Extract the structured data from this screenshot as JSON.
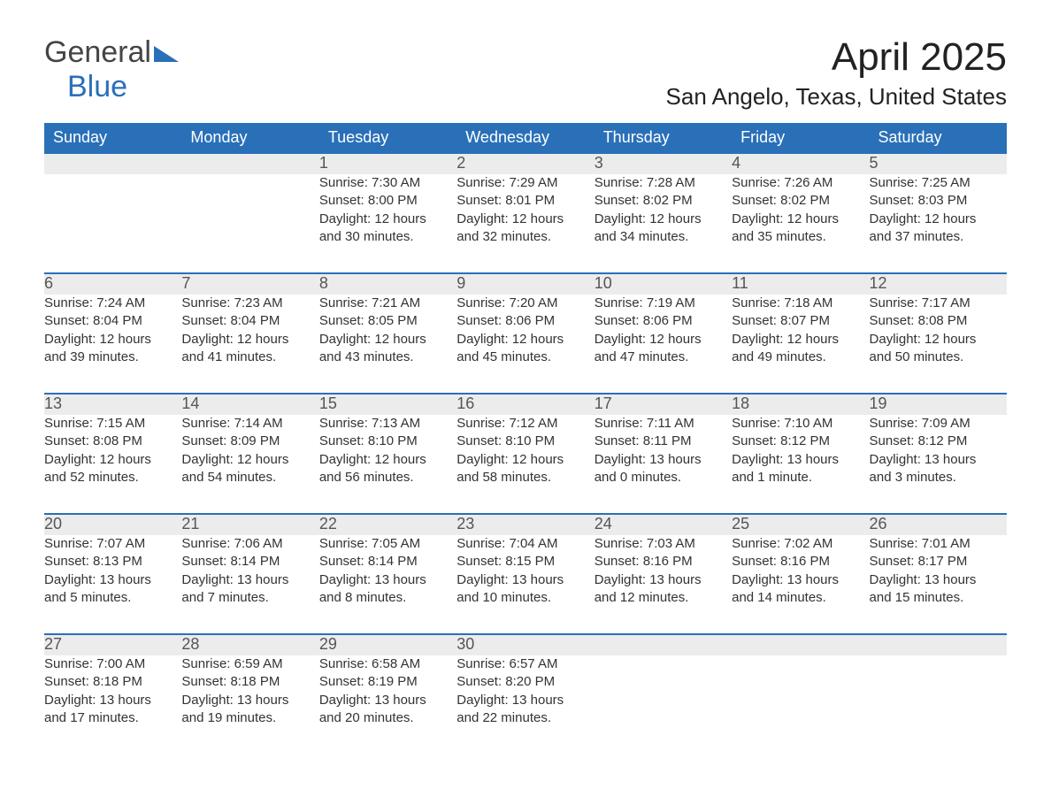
{
  "logo": {
    "text1": "General",
    "text2": "Blue",
    "tri_color": "#2a70b8",
    "text1_color": "#444444",
    "text2_color": "#2a70b8"
  },
  "title": "April 2025",
  "location": "San Angelo, Texas, United States",
  "header_bg": "#2a70b8",
  "header_fg": "#ffffff",
  "daynum_bg": "#ececec",
  "week_border": "#2a70b8",
  "body_text": "#333333",
  "daynum_text": "#555555",
  "font_family": "Arial, Helvetica, sans-serif",
  "title_fontsize": 44,
  "location_fontsize": 26,
  "header_fontsize": 18,
  "daynum_fontsize": 18,
  "body_fontsize": 15,
  "dayHeaders": [
    "Sunday",
    "Monday",
    "Tuesday",
    "Wednesday",
    "Thursday",
    "Friday",
    "Saturday"
  ],
  "weeks": [
    [
      {
        "n": "",
        "lines": [
          "",
          "",
          "",
          ""
        ]
      },
      {
        "n": "",
        "lines": [
          "",
          "",
          "",
          ""
        ]
      },
      {
        "n": "1",
        "lines": [
          "Sunrise: 7:30 AM",
          "Sunset: 8:00 PM",
          "Daylight: 12 hours",
          "and 30 minutes."
        ]
      },
      {
        "n": "2",
        "lines": [
          "Sunrise: 7:29 AM",
          "Sunset: 8:01 PM",
          "Daylight: 12 hours",
          "and 32 minutes."
        ]
      },
      {
        "n": "3",
        "lines": [
          "Sunrise: 7:28 AM",
          "Sunset: 8:02 PM",
          "Daylight: 12 hours",
          "and 34 minutes."
        ]
      },
      {
        "n": "4",
        "lines": [
          "Sunrise: 7:26 AM",
          "Sunset: 8:02 PM",
          "Daylight: 12 hours",
          "and 35 minutes."
        ]
      },
      {
        "n": "5",
        "lines": [
          "Sunrise: 7:25 AM",
          "Sunset: 8:03 PM",
          "Daylight: 12 hours",
          "and 37 minutes."
        ]
      }
    ],
    [
      {
        "n": "6",
        "lines": [
          "Sunrise: 7:24 AM",
          "Sunset: 8:04 PM",
          "Daylight: 12 hours",
          "and 39 minutes."
        ]
      },
      {
        "n": "7",
        "lines": [
          "Sunrise: 7:23 AM",
          "Sunset: 8:04 PM",
          "Daylight: 12 hours",
          "and 41 minutes."
        ]
      },
      {
        "n": "8",
        "lines": [
          "Sunrise: 7:21 AM",
          "Sunset: 8:05 PM",
          "Daylight: 12 hours",
          "and 43 minutes."
        ]
      },
      {
        "n": "9",
        "lines": [
          "Sunrise: 7:20 AM",
          "Sunset: 8:06 PM",
          "Daylight: 12 hours",
          "and 45 minutes."
        ]
      },
      {
        "n": "10",
        "lines": [
          "Sunrise: 7:19 AM",
          "Sunset: 8:06 PM",
          "Daylight: 12 hours",
          "and 47 minutes."
        ]
      },
      {
        "n": "11",
        "lines": [
          "Sunrise: 7:18 AM",
          "Sunset: 8:07 PM",
          "Daylight: 12 hours",
          "and 49 minutes."
        ]
      },
      {
        "n": "12",
        "lines": [
          "Sunrise: 7:17 AM",
          "Sunset: 8:08 PM",
          "Daylight: 12 hours",
          "and 50 minutes."
        ]
      }
    ],
    [
      {
        "n": "13",
        "lines": [
          "Sunrise: 7:15 AM",
          "Sunset: 8:08 PM",
          "Daylight: 12 hours",
          "and 52 minutes."
        ]
      },
      {
        "n": "14",
        "lines": [
          "Sunrise: 7:14 AM",
          "Sunset: 8:09 PM",
          "Daylight: 12 hours",
          "and 54 minutes."
        ]
      },
      {
        "n": "15",
        "lines": [
          "Sunrise: 7:13 AM",
          "Sunset: 8:10 PM",
          "Daylight: 12 hours",
          "and 56 minutes."
        ]
      },
      {
        "n": "16",
        "lines": [
          "Sunrise: 7:12 AM",
          "Sunset: 8:10 PM",
          "Daylight: 12 hours",
          "and 58 minutes."
        ]
      },
      {
        "n": "17",
        "lines": [
          "Sunrise: 7:11 AM",
          "Sunset: 8:11 PM",
          "Daylight: 13 hours",
          "and 0 minutes."
        ]
      },
      {
        "n": "18",
        "lines": [
          "Sunrise: 7:10 AM",
          "Sunset: 8:12 PM",
          "Daylight: 13 hours",
          "and 1 minute."
        ]
      },
      {
        "n": "19",
        "lines": [
          "Sunrise: 7:09 AM",
          "Sunset: 8:12 PM",
          "Daylight: 13 hours",
          "and 3 minutes."
        ]
      }
    ],
    [
      {
        "n": "20",
        "lines": [
          "Sunrise: 7:07 AM",
          "Sunset: 8:13 PM",
          "Daylight: 13 hours",
          "and 5 minutes."
        ]
      },
      {
        "n": "21",
        "lines": [
          "Sunrise: 7:06 AM",
          "Sunset: 8:14 PM",
          "Daylight: 13 hours",
          "and 7 minutes."
        ]
      },
      {
        "n": "22",
        "lines": [
          "Sunrise: 7:05 AM",
          "Sunset: 8:14 PM",
          "Daylight: 13 hours",
          "and 8 minutes."
        ]
      },
      {
        "n": "23",
        "lines": [
          "Sunrise: 7:04 AM",
          "Sunset: 8:15 PM",
          "Daylight: 13 hours",
          "and 10 minutes."
        ]
      },
      {
        "n": "24",
        "lines": [
          "Sunrise: 7:03 AM",
          "Sunset: 8:16 PM",
          "Daylight: 13 hours",
          "and 12 minutes."
        ]
      },
      {
        "n": "25",
        "lines": [
          "Sunrise: 7:02 AM",
          "Sunset: 8:16 PM",
          "Daylight: 13 hours",
          "and 14 minutes."
        ]
      },
      {
        "n": "26",
        "lines": [
          "Sunrise: 7:01 AM",
          "Sunset: 8:17 PM",
          "Daylight: 13 hours",
          "and 15 minutes."
        ]
      }
    ],
    [
      {
        "n": "27",
        "lines": [
          "Sunrise: 7:00 AM",
          "Sunset: 8:18 PM",
          "Daylight: 13 hours",
          "and 17 minutes."
        ]
      },
      {
        "n": "28",
        "lines": [
          "Sunrise: 6:59 AM",
          "Sunset: 8:18 PM",
          "Daylight: 13 hours",
          "and 19 minutes."
        ]
      },
      {
        "n": "29",
        "lines": [
          "Sunrise: 6:58 AM",
          "Sunset: 8:19 PM",
          "Daylight: 13 hours",
          "and 20 minutes."
        ]
      },
      {
        "n": "30",
        "lines": [
          "Sunrise: 6:57 AM",
          "Sunset: 8:20 PM",
          "Daylight: 13 hours",
          "and 22 minutes."
        ]
      },
      {
        "n": "",
        "lines": [
          "",
          "",
          "",
          ""
        ]
      },
      {
        "n": "",
        "lines": [
          "",
          "",
          "",
          ""
        ]
      },
      {
        "n": "",
        "lines": [
          "",
          "",
          "",
          ""
        ]
      }
    ]
  ]
}
